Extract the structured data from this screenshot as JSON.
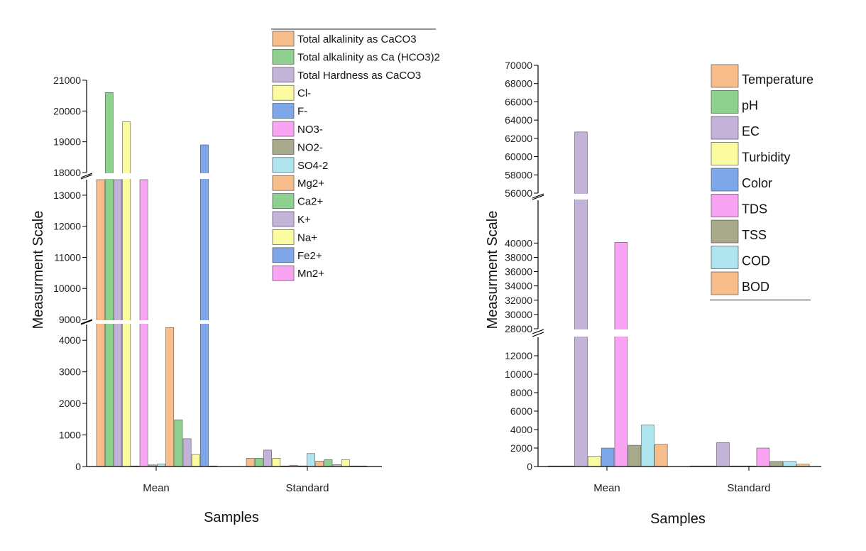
{
  "chart_data": [
    {
      "type": "bar",
      "xlabel": "Samples",
      "ylabel": "Measurment Scale",
      "categories": [
        "Mean",
        "Standard"
      ],
      "ylim": [
        0,
        21000
      ],
      "axis_breaks": [
        [
          4500,
          9000
        ],
        [
          13500,
          18000
        ]
      ],
      "yticks": [
        0,
        1000,
        2000,
        3000,
        4000,
        9000,
        10000,
        11000,
        12000,
        13000,
        18000,
        19000,
        20000,
        21000
      ],
      "legend_position": "top-right",
      "series": [
        {
          "name": "Total alkalinity as CaCO3",
          "color": "#f7bd8b",
          "values": [
            17000,
            260
          ]
        },
        {
          "name": "Total alkalinity as Ca (HCO3)2",
          "color": "#8ed18e",
          "values": [
            20600,
            260
          ]
        },
        {
          "name": "Total Hardness as CaCO3",
          "color": "#c3b3d8",
          "values": [
            13500,
            520
          ]
        },
        {
          "name": "Cl-",
          "color": "#fbfba0",
          "values": [
            19650,
            260
          ]
        },
        {
          "name": "F-",
          "color": "#7da7e8",
          "values": [
            2,
            4
          ]
        },
        {
          "name": "NO3-",
          "color": "#f9a4f3",
          "values": [
            13500,
            40
          ]
        },
        {
          "name": "NO2-",
          "color": "#a8a88a",
          "values": [
            50,
            20
          ]
        },
        {
          "name": "SO4-2",
          "color": "#aee5ee",
          "values": [
            80,
            410
          ]
        },
        {
          "name": "Mg2+",
          "color": "#f7bd8b",
          "values": [
            4400,
            170
          ]
        },
        {
          "name": "Ca2+",
          "color": "#8ed18e",
          "values": [
            1480,
            220
          ]
        },
        {
          "name": "K+",
          "color": "#c3b3d8",
          "values": [
            880,
            60
          ]
        },
        {
          "name": "Na+",
          "color": "#fbfba0",
          "values": [
            380,
            220
          ]
        },
        {
          "name": "Fe2+",
          "color": "#7da7e8",
          "values": [
            18900,
            8
          ]
        },
        {
          "name": "Mn2+",
          "color": "#f9a4f3",
          "values": [
            3,
            2
          ]
        }
      ]
    },
    {
      "type": "bar",
      "xlabel": "Samples",
      "ylabel": "Measurment Scale",
      "categories": [
        "Mean",
        "Standard"
      ],
      "ylim": [
        0,
        70000
      ],
      "axis_breaks": [
        [
          14000,
          28000
        ],
        [
          46000,
          56000
        ]
      ],
      "yticks": [
        0,
        2000,
        4000,
        6000,
        8000,
        10000,
        12000,
        28000,
        30000,
        32000,
        34000,
        36000,
        38000,
        40000,
        56000,
        58000,
        60000,
        62000,
        64000,
        66000,
        68000,
        70000
      ],
      "legend_position": "top-right",
      "series": [
        {
          "name": "Temperature",
          "color": "#f7bd8b",
          "values": [
            28,
            4
          ]
        },
        {
          "name": "pH",
          "color": "#8ed18e",
          "values": [
            7.5,
            0.5
          ]
        },
        {
          "name": "EC",
          "color": "#c3b3d8",
          "values": [
            62700,
            2600
          ]
        },
        {
          "name": "Turbidity",
          "color": "#fbfba0",
          "values": [
            1100,
            30
          ]
        },
        {
          "name": "Color",
          "color": "#7da7e8",
          "values": [
            2000,
            40
          ]
        },
        {
          "name": "TDS",
          "color": "#f9a4f3",
          "values": [
            40100,
            2000
          ]
        },
        {
          "name": "TSS",
          "color": "#a8a88a",
          "values": [
            2300,
            550
          ]
        },
        {
          "name": "COD",
          "color": "#aee5ee",
          "values": [
            4500,
            550
          ]
        },
        {
          "name": "BOD",
          "color": "#f7bd8b",
          "values": [
            2400,
            250
          ]
        }
      ]
    }
  ]
}
